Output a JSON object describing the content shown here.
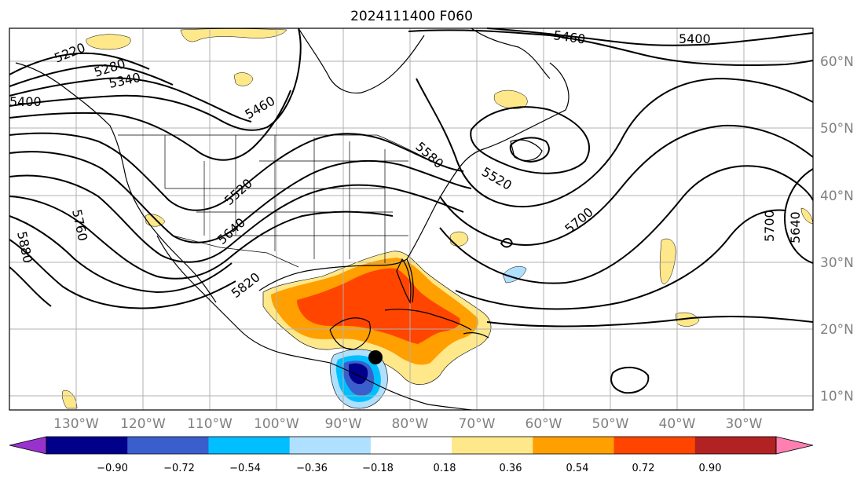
{
  "title": "2024111400 F060",
  "map": {
    "lon_labels": [
      "130°W",
      "120°W",
      "110°W",
      "100°W",
      "90°W",
      "80°W",
      "70°W",
      "60°W",
      "50°W",
      "40°W",
      "30°W"
    ],
    "lat_labels": [
      "60°N",
      "50°N",
      "40°N",
      "30°N",
      "20°N",
      "10°N"
    ],
    "contour_labels": [
      "5220",
      "5280",
      "5340",
      "5400",
      "5460",
      "5460",
      "5400",
      "5520",
      "5580",
      "5520",
      "5640",
      "5700",
      "5700",
      "5760",
      "5820",
      "5880",
      "5640"
    ]
  },
  "colorbar": {
    "ticks": [
      "−0.90",
      "−0.72",
      "−0.54",
      "−0.36",
      "−0.18",
      "0.18",
      "0.36",
      "0.54",
      "0.72",
      "0.90"
    ],
    "colors": [
      "#9932cc",
      "#00008b",
      "#3a5fcd",
      "#00bfff",
      "#b0e0ff",
      "#ffffff",
      "#ffe88a",
      "#ff9f00",
      "#ff4500",
      "#b22222",
      "#ff80b0"
    ]
  }
}
